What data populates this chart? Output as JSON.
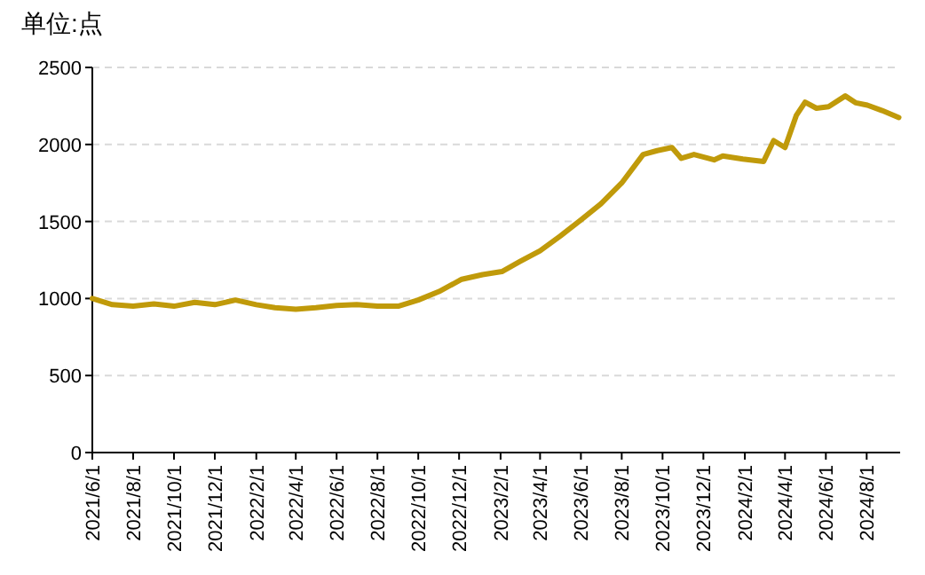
{
  "chart_data": {
    "type": "line",
    "ylabel": "单位:点",
    "x": [
      "2021-06-01",
      "2021-07-01",
      "2021-08-01",
      "2021-09-01",
      "2021-10-01",
      "2021-11-01",
      "2021-12-01",
      "2022-01-01",
      "2022-02-01",
      "2022-03-01",
      "2022-04-01",
      "2022-05-01",
      "2022-06-01",
      "2022-07-01",
      "2022-08-01",
      "2022-09-01",
      "2022-10-01",
      "2022-11-01",
      "2022-12-05",
      "2023-01-05",
      "2023-02-03",
      "2023-03-02",
      "2023-04-01",
      "2023-05-01",
      "2023-06-01",
      "2023-07-01",
      "2023-08-01",
      "2023-09-02",
      "2023-09-23",
      "2023-10-15",
      "2023-10-29",
      "2023-11-17",
      "2023-12-17",
      "2023-12-30",
      "2024-01-29",
      "2024-02-29",
      "2024-03-15",
      "2024-04-01",
      "2024-04-18",
      "2024-05-01",
      "2024-05-18",
      "2024-06-05",
      "2024-06-30",
      "2024-07-16",
      "2024-08-02",
      "2024-08-24",
      "2024-09-18"
    ],
    "series": [
      {
        "color": "#c09a0a",
        "values": [
          1000,
          960,
          950,
          965,
          950,
          975,
          960,
          990,
          960,
          940,
          930,
          940,
          955,
          960,
          950,
          950,
          990,
          1045,
          1125,
          1155,
          1175,
          1240,
          1310,
          1405,
          1510,
          1615,
          1750,
          1935,
          1960,
          1980,
          1910,
          1935,
          1900,
          1925,
          1905,
          1890,
          2025,
          1980,
          2190,
          2275,
          2235,
          2245,
          2315,
          2270,
          2255,
          2220,
          2175
        ]
      }
    ],
    "xlim": [
      "2021-06-01",
      "2024-09-20"
    ],
    "xticks": [
      {
        "value": "2021-06-01",
        "label": "2021/6/1"
      },
      {
        "value": "2021-08-01",
        "label": "2021/8/1"
      },
      {
        "value": "2021-10-01",
        "label": "2021/10/1"
      },
      {
        "value": "2021-12-01",
        "label": "2021/12/1"
      },
      {
        "value": "2022-02-01",
        "label": "2022/2/1"
      },
      {
        "value": "2022-04-01",
        "label": "2022/4/1"
      },
      {
        "value": "2022-06-01",
        "label": "2022/6/1"
      },
      {
        "value": "2022-08-01",
        "label": "2022/8/1"
      },
      {
        "value": "2022-10-01",
        "label": "2022/10/1"
      },
      {
        "value": "2022-12-01",
        "label": "2022/12/1"
      },
      {
        "value": "2023-02-01",
        "label": "2023/2/1"
      },
      {
        "value": "2023-04-01",
        "label": "2023/4/1"
      },
      {
        "value": "2023-06-01",
        "label": "2023/6/1"
      },
      {
        "value": "2023-08-01",
        "label": "2023/8/1"
      },
      {
        "value": "2023-10-01",
        "label": "2023/10/1"
      },
      {
        "value": "2023-12-01",
        "label": "2023/12/1"
      },
      {
        "value": "2024-02-01",
        "label": "2024/2/1"
      },
      {
        "value": "2024-04-01",
        "label": "2024/4/1"
      },
      {
        "value": "2024-06-01",
        "label": "2024/6/1"
      },
      {
        "value": "2024-08-01",
        "label": "2024/8/1"
      }
    ],
    "ylim": [
      0,
      2500
    ],
    "yticks": [
      0,
      500,
      1000,
      1500,
      2000,
      2500
    ],
    "grid": "y",
    "marker": "none",
    "line_style": "solid"
  }
}
